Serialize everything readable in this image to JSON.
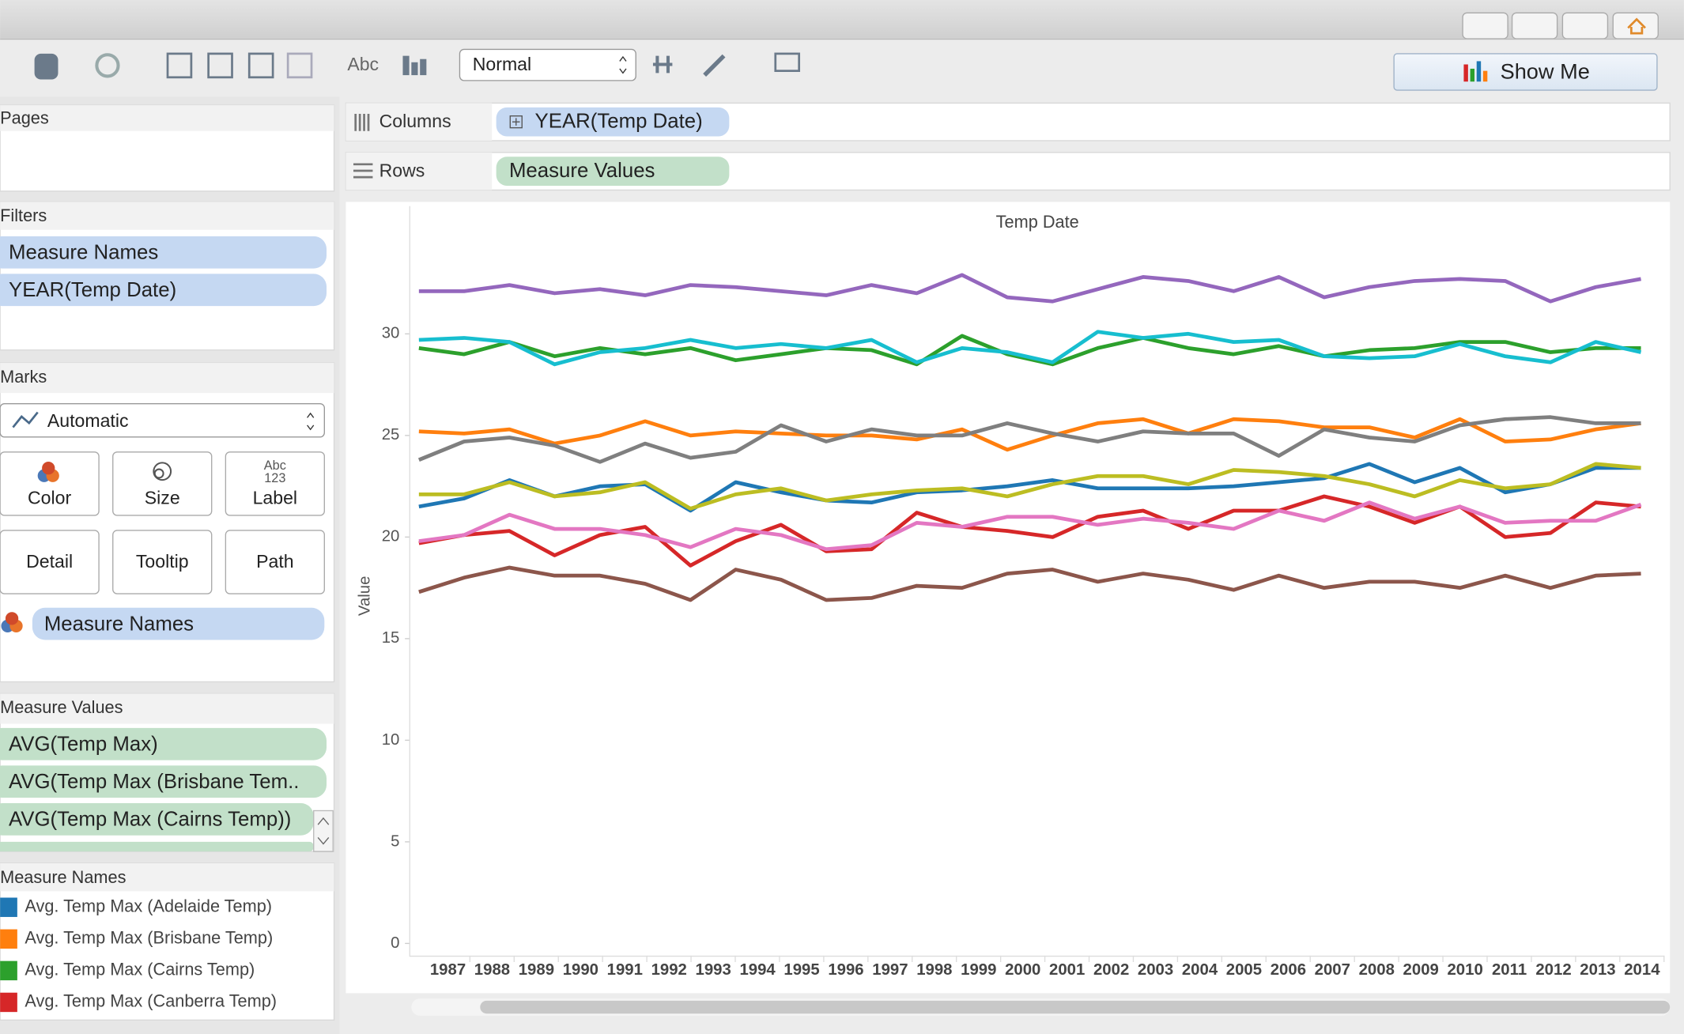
{
  "toolbar": {
    "abc": "Abc",
    "view": "Normal",
    "show_me": "Show Me"
  },
  "shelves": {
    "columns_label": "Columns",
    "columns_pill": "YEAR(Temp Date)",
    "rows_label": "Rows",
    "rows_pill": "Measure Values"
  },
  "pages": {
    "title": "Pages"
  },
  "filters": {
    "title": "Filters",
    "pills": [
      "Measure Names",
      "YEAR(Temp Date)"
    ]
  },
  "marks": {
    "title": "Marks",
    "type": "Automatic",
    "buttons": [
      "Color",
      "Size",
      "Label",
      "Detail",
      "Tooltip",
      "Path"
    ],
    "label_icon": [
      "Abc",
      "123"
    ],
    "pill": "Measure Names"
  },
  "measure_values": {
    "title": "Measure Values",
    "pills": [
      "AVG(Temp Max)",
      "AVG(Temp Max (Brisbane Tem..",
      "AVG(Temp Max (Cairns Temp))"
    ]
  },
  "legend": {
    "title": "Measure Names"
  },
  "chart_data": {
    "type": "line",
    "title": "Temp Date",
    "y_label": "Value",
    "categories": [
      "1987",
      "1988",
      "1989",
      "1990",
      "1991",
      "1992",
      "1993",
      "1994",
      "1995",
      "1996",
      "1997",
      "1998",
      "1999",
      "2000",
      "2001",
      "2002",
      "2003",
      "2004",
      "2005",
      "2006",
      "2007",
      "2008",
      "2009",
      "2010",
      "2011",
      "2012",
      "2013",
      "2014"
    ],
    "ylim": [
      -0.6,
      34.7
    ],
    "yticks": [
      0,
      5,
      10,
      15,
      20,
      25,
      30
    ],
    "grid": false,
    "series": [
      {
        "name": "Avg. Temp Max (Adelaide Temp)",
        "color": "#1f77b4",
        "values": [
          21.5,
          21.9,
          22.8,
          22.0,
          22.5,
          22.6,
          21.3,
          22.7,
          22.2,
          21.8,
          21.7,
          22.2,
          22.3,
          22.5,
          22.8,
          22.4,
          22.4,
          22.4,
          22.5,
          22.7,
          22.9,
          23.6,
          22.7,
          23.4,
          22.2,
          22.6,
          23.4,
          23.4
        ]
      },
      {
        "name": "Avg. Temp Max (Brisbane Temp)",
        "color": "#ff7f0e",
        "values": [
          25.2,
          25.1,
          25.3,
          24.6,
          25.0,
          25.7,
          25.0,
          25.2,
          25.1,
          25.0,
          25.0,
          24.8,
          25.3,
          24.3,
          25.0,
          25.6,
          25.8,
          25.1,
          25.8,
          25.7,
          25.4,
          25.4,
          24.9,
          25.8,
          24.7,
          24.8,
          25.3,
          25.6
        ]
      },
      {
        "name": "Avg. Temp Max (Cairns Temp)",
        "color": "#2ca02c",
        "values": [
          29.3,
          29.0,
          29.6,
          28.9,
          29.3,
          29.0,
          29.3,
          28.7,
          29.0,
          29.3,
          29.2,
          28.5,
          29.9,
          29.0,
          28.5,
          29.3,
          29.8,
          29.3,
          29.0,
          29.4,
          28.9,
          29.2,
          29.3,
          29.6,
          29.6,
          29.1,
          29.3,
          29.3
        ]
      },
      {
        "name": "Avg. Temp Max (Canberra Temp)",
        "color": "#d62728",
        "values": [
          19.7,
          20.1,
          20.3,
          19.1,
          20.1,
          20.5,
          18.6,
          19.8,
          20.6,
          19.3,
          19.4,
          21.2,
          20.5,
          20.3,
          20.0,
          21.0,
          21.3,
          20.4,
          21.3,
          21.3,
          22.0,
          21.5,
          20.7,
          21.5,
          20.0,
          20.2,
          21.7,
          21.5
        ]
      },
      {
        "color": "#9467bd",
        "values": [
          32.1,
          32.1,
          32.4,
          32.0,
          32.2,
          31.9,
          32.4,
          32.3,
          32.1,
          31.9,
          32.4,
          32.0,
          32.9,
          31.8,
          31.6,
          32.2,
          32.8,
          32.6,
          32.1,
          32.8,
          31.8,
          32.3,
          32.6,
          32.7,
          32.6,
          31.6,
          32.3,
          32.7
        ]
      },
      {
        "color": "#17becf",
        "values": [
          29.7,
          29.8,
          29.6,
          28.5,
          29.1,
          29.3,
          29.7,
          29.3,
          29.5,
          29.3,
          29.7,
          28.6,
          29.3,
          29.1,
          28.6,
          30.1,
          29.8,
          30.0,
          29.6,
          29.7,
          28.9,
          28.8,
          28.9,
          29.5,
          28.9,
          28.6,
          29.6,
          29.1
        ]
      },
      {
        "color": "#7f7f7f",
        "values": [
          23.8,
          24.7,
          24.9,
          24.5,
          23.7,
          24.6,
          23.9,
          24.2,
          25.5,
          24.7,
          25.3,
          25.0,
          25.0,
          25.6,
          25.1,
          24.7,
          25.2,
          25.1,
          25.1,
          24.0,
          25.3,
          24.9,
          24.7,
          25.5,
          25.8,
          25.9,
          25.6,
          25.6
        ]
      },
      {
        "color": "#bcbd22",
        "values": [
          22.1,
          22.1,
          22.7,
          22.0,
          22.2,
          22.7,
          21.4,
          22.1,
          22.4,
          21.8,
          22.1,
          22.3,
          22.4,
          22.0,
          22.6,
          23.0,
          23.0,
          22.6,
          23.3,
          23.2,
          23.0,
          22.6,
          22.0,
          22.8,
          22.4,
          22.6,
          23.6,
          23.4
        ]
      },
      {
        "color": "#e377c2",
        "values": [
          19.8,
          20.1,
          21.1,
          20.4,
          20.4,
          20.1,
          19.5,
          20.4,
          20.1,
          19.4,
          19.6,
          20.7,
          20.5,
          21.0,
          21.0,
          20.6,
          20.9,
          20.7,
          20.4,
          21.3,
          20.8,
          21.7,
          20.9,
          21.5,
          20.7,
          20.8,
          20.8,
          21.6
        ]
      },
      {
        "color": "#8c564b",
        "values": [
          17.3,
          18.0,
          18.5,
          18.1,
          18.1,
          17.7,
          16.9,
          18.4,
          17.9,
          16.9,
          17.0,
          17.6,
          17.5,
          18.2,
          18.4,
          17.8,
          18.2,
          17.9,
          17.4,
          18.1,
          17.5,
          17.8,
          17.8,
          17.5,
          18.1,
          17.5,
          18.1,
          18.2
        ]
      }
    ]
  }
}
